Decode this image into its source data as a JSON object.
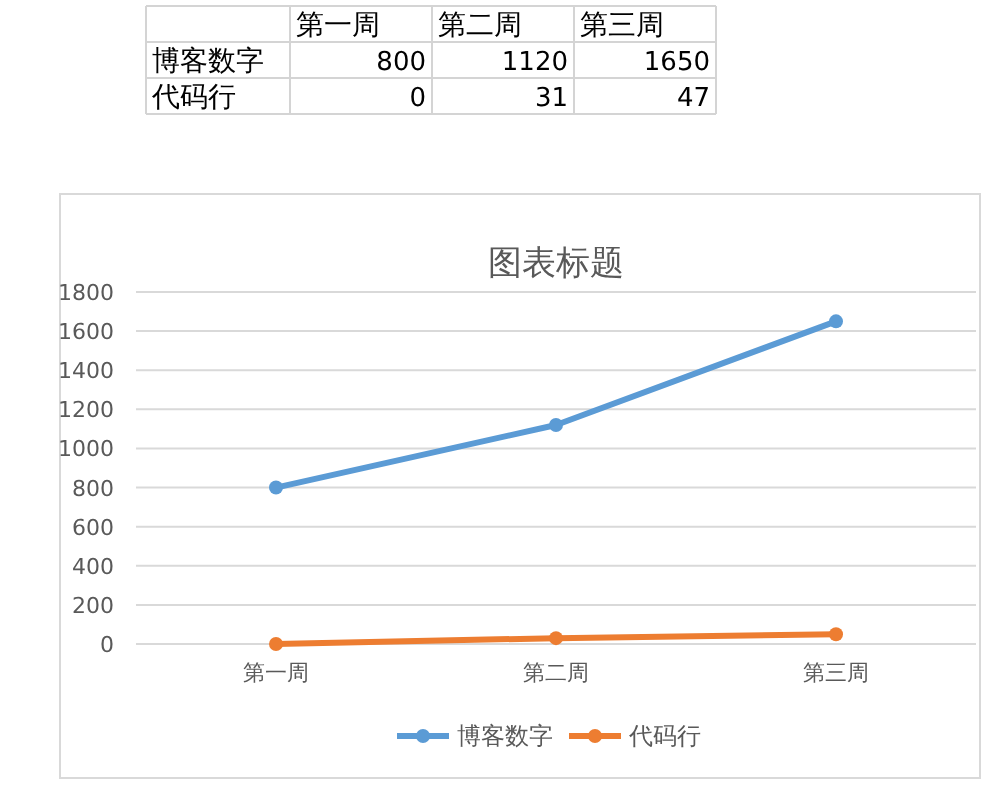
{
  "chart_data": [
    {
      "type": "other",
      "categories": [
        "第一周",
        "第二周",
        "第三周"
      ],
      "series": [
        {
          "name": "博客数字",
          "values": [
            800,
            1120,
            1650
          ]
        },
        {
          "name": "代码行",
          "values": [
            0,
            31,
            47
          ]
        }
      ],
      "data_labels": true
    },
    {
      "type": "line",
      "title": "图表标题",
      "categories": [
        "第一周",
        "第二周",
        "第三周"
      ],
      "series": [
        {
          "name": "博客数字",
          "color": "#5b9bd5",
          "values": [
            800,
            1120,
            1650
          ]
        },
        {
          "name": "代码行",
          "color": "#ed7d31",
          "values": [
            0,
            30,
            50
          ]
        }
      ],
      "ylim": [
        0,
        1800
      ],
      "yticks": [
        0,
        200,
        400,
        600,
        800,
        1000,
        1200,
        1400,
        1600,
        1800
      ],
      "grid": "y",
      "legend": "bottom",
      "marker": "circle"
    }
  ]
}
